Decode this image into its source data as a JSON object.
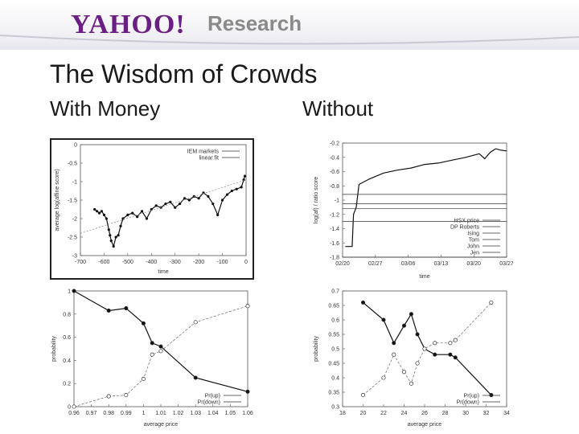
{
  "header": {
    "logo_text": "YAHOO!",
    "product": "Research"
  },
  "slide": {
    "title": "The Wisdom of Crowds",
    "left_heading": "With Money",
    "right_heading": "Without"
  },
  "chart_data": [
    {
      "type": "line",
      "xlabel": "time",
      "ylabel": "average log(affine score)",
      "xticks": [
        "-700",
        "-600",
        "-500",
        "-400",
        "-300",
        "-200",
        "-100",
        "0"
      ],
      "yticks": [
        "0",
        "-0.5",
        "-1",
        "-1.5",
        "-2",
        "-2.5",
        "-3"
      ],
      "xlim": [
        -700,
        0
      ],
      "ylim": [
        -3,
        0
      ],
      "legend": [
        "IEM markets",
        "linear fit"
      ],
      "series": [
        {
          "name": "IEM markets",
          "x": [
            -640,
            -630,
            -620,
            -610,
            -600,
            -590,
            -580,
            -575,
            -570,
            -560,
            -550,
            -540,
            -530,
            -520,
            -500,
            -480,
            -460,
            -440,
            -420,
            -400,
            -380,
            -360,
            -340,
            -320,
            -300,
            -280,
            -260,
            -240,
            -220,
            -200,
            -180,
            -160,
            -140,
            -120,
            -100,
            -80,
            -60,
            -40,
            -20,
            -10,
            -5
          ],
          "y": [
            -1.75,
            -1.8,
            -1.85,
            -1.8,
            -1.9,
            -2.0,
            -2.3,
            -2.45,
            -2.6,
            -2.75,
            -2.5,
            -2.45,
            -2.2,
            -2.0,
            -1.9,
            -1.85,
            -1.95,
            -1.8,
            -2.0,
            -1.75,
            -1.65,
            -1.7,
            -1.6,
            -1.55,
            -1.7,
            -1.6,
            -1.45,
            -1.5,
            -1.4,
            -1.45,
            -1.3,
            -1.4,
            -1.6,
            -1.9,
            -1.5,
            -1.35,
            -1.25,
            -1.2,
            -1.15,
            -0.95,
            -0.85
          ]
        },
        {
          "name": "linear fit",
          "x": [
            -700,
            0
          ],
          "y": [
            -2.4,
            -0.95
          ]
        }
      ]
    },
    {
      "type": "line",
      "xlabel": "time",
      "ylabel": "log(af) / ratio score",
      "xticks": [
        "02/20",
        "02/27",
        "03/06",
        "03/13",
        "03/20",
        "03/27"
      ],
      "yticks": [
        "-0.2",
        "-0.4",
        "-0.6",
        "-0.8",
        "-1",
        "-1.2",
        "-1.4",
        "-1.6",
        "-1.8"
      ],
      "xlim": [
        0,
        6
      ],
      "ylim": [
        -1.8,
        -0.2
      ],
      "legend": [
        "HSX price",
        "DP Roberts",
        "Ising",
        "Tom",
        "John",
        "Jen"
      ],
      "series": [
        {
          "name": "HSX price",
          "x": [
            0.1,
            0.25,
            0.35,
            0.4,
            0.5,
            0.6,
            0.8,
            1.0,
            1.5,
            2.0,
            2.5,
            3.0,
            3.5,
            4.0,
            4.5,
            5.0,
            5.2,
            5.4,
            5.6,
            5.8,
            6.0
          ],
          "y": [
            -1.65,
            -1.65,
            -1.65,
            -1.2,
            -1.1,
            -0.78,
            -0.74,
            -0.7,
            -0.62,
            -0.58,
            -0.55,
            -0.5,
            -0.48,
            -0.44,
            -0.4,
            -0.35,
            -0.42,
            -0.33,
            -0.28,
            -0.3,
            -0.31
          ]
        },
        {
          "name": "DP Roberts",
          "x": [
            0,
            6
          ],
          "y": [
            -0.92,
            -0.92
          ]
        },
        {
          "name": "Ising",
          "x": [
            0,
            6
          ],
          "y": [
            -1.05,
            -1.05
          ]
        },
        {
          "name": "Tom",
          "x": [
            0,
            6
          ],
          "y": [
            -1.12,
            -1.12
          ]
        },
        {
          "name": "John",
          "x": [
            0,
            6
          ],
          "y": [
            -1.3,
            -1.3
          ]
        },
        {
          "name": "Jen",
          "x": [
            0,
            6
          ],
          "y": [
            -1.8,
            -1.8
          ]
        }
      ]
    },
    {
      "type": "line",
      "xlabel": "average price",
      "ylabel": "probability",
      "xticks": [
        "0.96",
        "0.97",
        "0.98",
        "0.99",
        "1",
        "1.01",
        "1.02",
        "1.03",
        "1.04",
        "1.05",
        "1.06"
      ],
      "yticks": [
        "0",
        "0.2",
        "0.4",
        "0.6",
        "0.8",
        "1"
      ],
      "xlim": [
        0.96,
        1.06
      ],
      "ylim": [
        0,
        1
      ],
      "legend": [
        "Pr(up)",
        "Pr(down)"
      ],
      "series": [
        {
          "name": "Pr(up)",
          "x": [
            0.96,
            0.98,
            0.99,
            1.0,
            1.005,
            1.01,
            1.03,
            1.06
          ],
          "y": [
            1.0,
            0.83,
            0.85,
            0.72,
            0.55,
            0.52,
            0.25,
            0.13
          ]
        },
        {
          "name": "Pr(down)",
          "x": [
            0.96,
            0.98,
            0.99,
            1.0,
            1.005,
            1.01,
            1.03,
            1.06
          ],
          "y": [
            0.0,
            0.09,
            0.1,
            0.24,
            0.45,
            0.48,
            0.73,
            0.87
          ]
        }
      ]
    },
    {
      "type": "line",
      "xlabel": "average price",
      "ylabel": "probability",
      "xticks": [
        "18",
        "20",
        "22",
        "24",
        "26",
        "28",
        "30",
        "32",
        "34"
      ],
      "yticks": [
        "0.3",
        "0.35",
        "0.4",
        "0.45",
        "0.5",
        "0.55",
        "0.6",
        "0.65",
        "0.7"
      ],
      "xlim": [
        18,
        34
      ],
      "ylim": [
        0.3,
        0.7
      ],
      "legend": [
        "Pr(up)",
        "Pr(down)"
      ],
      "series": [
        {
          "name": "Pr(up)",
          "x": [
            20,
            22,
            23,
            24,
            24.7,
            25.3,
            26,
            27,
            28.5,
            29,
            32.5
          ],
          "y": [
            0.66,
            0.6,
            0.52,
            0.58,
            0.62,
            0.55,
            0.5,
            0.48,
            0.48,
            0.47,
            0.34
          ]
        },
        {
          "name": "Pr(down)",
          "x": [
            20,
            22,
            23,
            24,
            24.7,
            25.3,
            26,
            27,
            28.5,
            29,
            32.5
          ],
          "y": [
            0.34,
            0.4,
            0.48,
            0.42,
            0.38,
            0.45,
            0.5,
            0.52,
            0.52,
            0.53,
            0.66
          ]
        }
      ]
    }
  ]
}
